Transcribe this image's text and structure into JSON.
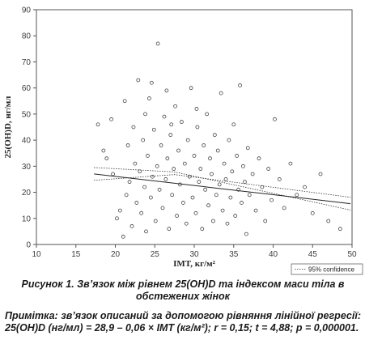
{
  "chart_data": {
    "type": "scatter",
    "xlabel": "IMT, кг/м²",
    "ylabel": "25(OH)D, нг/мл",
    "xlim": [
      10,
      50
    ],
    "ylim": [
      0,
      90
    ],
    "x_ticks": [
      "10",
      "15",
      "20",
      "25",
      "30",
      "35",
      "40",
      "45",
      "50"
    ],
    "y_ticks": [
      "0",
      "10",
      "20",
      "30",
      "40",
      "50",
      "60",
      "70",
      "80",
      "90"
    ],
    "grid": false,
    "legend": {
      "position": "bottom-right",
      "label": "95% confidence"
    },
    "regression": {
      "intercept": 28.9,
      "slope": -0.06,
      "ci_band": [
        [
          17.3,
          29.5,
          24.6
        ],
        [
          27.5,
          27.8,
          26.8
        ],
        [
          49.8,
          13.2,
          18.1
        ]
      ]
    },
    "series": [
      {
        "points": [
          [
            17.8,
            46
          ],
          [
            18.5,
            36
          ],
          [
            18.9,
            33
          ],
          [
            19.5,
            48
          ],
          [
            19.7,
            27
          ],
          [
            20.2,
            10
          ],
          [
            20.6,
            13
          ],
          [
            21.0,
            3
          ],
          [
            21.2,
            55
          ],
          [
            21.4,
            19
          ],
          [
            21.6,
            38
          ],
          [
            21.8,
            24
          ],
          [
            22.1,
            7
          ],
          [
            22.3,
            45
          ],
          [
            22.5,
            31
          ],
          [
            22.7,
            16
          ],
          [
            22.9,
            63
          ],
          [
            23.1,
            28
          ],
          [
            23.3,
            12
          ],
          [
            23.5,
            40
          ],
          [
            23.7,
            22
          ],
          [
            23.9,
            5
          ],
          [
            24.1,
            34
          ],
          [
            24.3,
            56
          ],
          [
            24.5,
            18
          ],
          [
            24.7,
            26
          ],
          [
            24.9,
            44
          ],
          [
            25.1,
            9
          ],
          [
            25.3,
            30
          ],
          [
            25.4,
            77
          ],
          [
            25.6,
            21
          ],
          [
            25.8,
            38
          ],
          [
            26.0,
            14
          ],
          [
            26.2,
            49
          ],
          [
            26.4,
            25
          ],
          [
            26.6,
            33
          ],
          [
            26.8,
            6
          ],
          [
            27.0,
            42
          ],
          [
            27.2,
            19
          ],
          [
            27.4,
            29
          ],
          [
            27.6,
            53
          ],
          [
            27.8,
            11
          ],
          [
            28.0,
            36
          ],
          [
            28.2,
            23
          ],
          [
            28.4,
            47
          ],
          [
            28.6,
            16
          ],
          [
            28.8,
            31
          ],
          [
            29.0,
            8
          ],
          [
            29.2,
            40
          ],
          [
            29.4,
            26
          ],
          [
            29.6,
            60
          ],
          [
            29.8,
            18
          ],
          [
            30.0,
            34
          ],
          [
            30.2,
            12
          ],
          [
            30.4,
            45
          ],
          [
            30.6,
            24
          ],
          [
            30.8,
            29
          ],
          [
            31.0,
            6
          ],
          [
            31.2,
            38
          ],
          [
            31.4,
            21
          ],
          [
            31.6,
            50
          ],
          [
            31.8,
            15
          ],
          [
            32.0,
            33
          ],
          [
            32.2,
            27
          ],
          [
            32.4,
            9
          ],
          [
            32.6,
            42
          ],
          [
            32.8,
            19
          ],
          [
            33.0,
            36
          ],
          [
            33.2,
            23
          ],
          [
            33.4,
            58
          ],
          [
            33.6,
            13
          ],
          [
            33.8,
            31
          ],
          [
            34.0,
            25
          ],
          [
            34.2,
            8
          ],
          [
            34.4,
            40
          ],
          [
            34.6,
            18
          ],
          [
            34.8,
            28
          ],
          [
            35.0,
            46
          ],
          [
            35.2,
            11
          ],
          [
            35.4,
            34
          ],
          [
            35.6,
            21
          ],
          [
            35.8,
            61
          ],
          [
            36.0,
            16
          ],
          [
            36.2,
            30
          ],
          [
            36.4,
            24
          ],
          [
            36.6,
            4
          ],
          [
            36.8,
            37
          ],
          [
            37.0,
            19
          ],
          [
            37.4,
            27
          ],
          [
            37.8,
            13
          ],
          [
            38.2,
            33
          ],
          [
            38.6,
            22
          ],
          [
            39.0,
            9
          ],
          [
            39.4,
            29
          ],
          [
            39.8,
            17
          ],
          [
            40.2,
            48
          ],
          [
            40.8,
            25
          ],
          [
            41.4,
            14
          ],
          [
            42.2,
            31
          ],
          [
            43.0,
            19
          ],
          [
            44.0,
            22
          ],
          [
            45.0,
            12
          ],
          [
            46.0,
            27
          ],
          [
            47.0,
            9
          ],
          [
            48.5,
            6
          ],
          [
            23.8,
            50
          ],
          [
            27.1,
            46
          ],
          [
            30.3,
            52
          ],
          [
            26.5,
            59
          ],
          [
            24.6,
            62
          ]
        ]
      }
    ]
  },
  "caption": {
    "title": "Рисунок 1. Зв’язок між рівнем 25(OH)D та індексом маси тіла в обстежених жінок",
    "note": "Примітка: зв’язок описаний за допомогою рівняння лінійної регресії: 25(OH)D (нг/мл) = 28,9 – 0,06 × IMT (кг/м²); r = 0,15; t = 4,88; p = 0,000001."
  }
}
